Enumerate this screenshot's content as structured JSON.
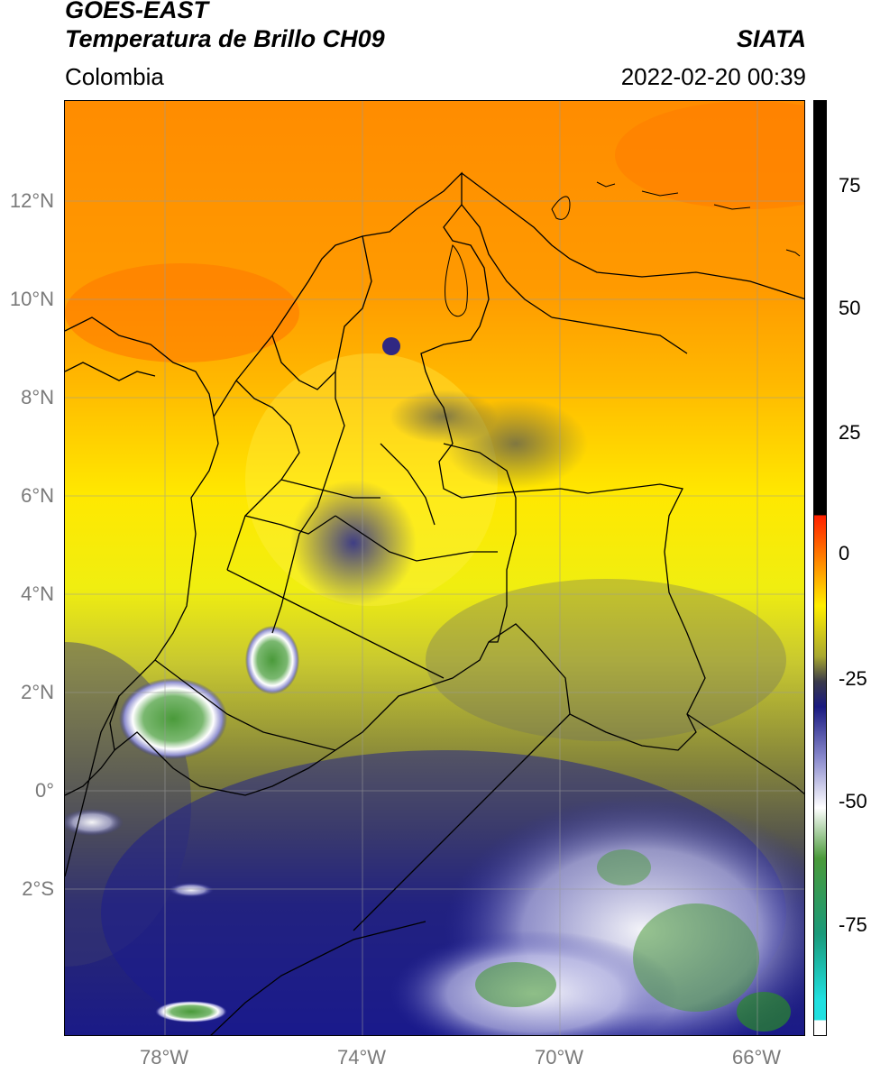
{
  "header": {
    "satellite": "GOES-EAST",
    "product": "Temperatura de Brillo CH09",
    "organization": "SIATA",
    "region": "Colombia",
    "datetime": "2022-02-20 00:39"
  },
  "axes": {
    "lat_labels": [
      {
        "text": "12°N",
        "value": 12
      },
      {
        "text": "10°N",
        "value": 10
      },
      {
        "text": "8°N",
        "value": 8
      },
      {
        "text": "6°N",
        "value": 6
      },
      {
        "text": "4°N",
        "value": 4
      },
      {
        "text": "2°N",
        "value": 2
      },
      {
        "text": "0°",
        "value": 0
      },
      {
        "text": "2°S",
        "value": -2
      }
    ],
    "lon_labels": [
      {
        "text": "78°W",
        "value": -78
      },
      {
        "text": "74°W",
        "value": -74
      },
      {
        "text": "70°W",
        "value": -70
      },
      {
        "text": "66°W",
        "value": -66
      }
    ]
  },
  "colorbar": {
    "ticks": [
      {
        "text": "75",
        "value": 75
      },
      {
        "text": "50",
        "value": 50
      },
      {
        "text": "25",
        "value": 25
      },
      {
        "text": "0",
        "value": 0
      },
      {
        "text": "-25",
        "value": -25
      },
      {
        "text": "-50",
        "value": -50
      },
      {
        "text": "-75",
        "value": -75
      }
    ],
    "range": [
      -95,
      90
    ],
    "stops": [
      {
        "value": 90,
        "color": "#000000"
      },
      {
        "value": 8,
        "color": "#000000"
      },
      {
        "value": 7.9,
        "color": "#ff2000"
      },
      {
        "value": 0,
        "color": "#ff7a00"
      },
      {
        "value": -10,
        "color": "#ffee00"
      },
      {
        "value": -20,
        "color": "#a8a830"
      },
      {
        "value": -25,
        "color": "#3a3a4a"
      },
      {
        "value": -30,
        "color": "#1a1a80"
      },
      {
        "value": -40,
        "color": "#8888cc"
      },
      {
        "value": -50,
        "color": "#ffffff"
      },
      {
        "value": -60,
        "color": "#4a9a3a"
      },
      {
        "value": -75,
        "color": "#1a9a7a"
      },
      {
        "value": -88,
        "color": "#20e0e0"
      },
      {
        "value": -92,
        "color": "#20e0e0"
      },
      {
        "value": -92.1,
        "color": "#ffffff"
      },
      {
        "value": -95,
        "color": "#ffffff"
      }
    ]
  }
}
